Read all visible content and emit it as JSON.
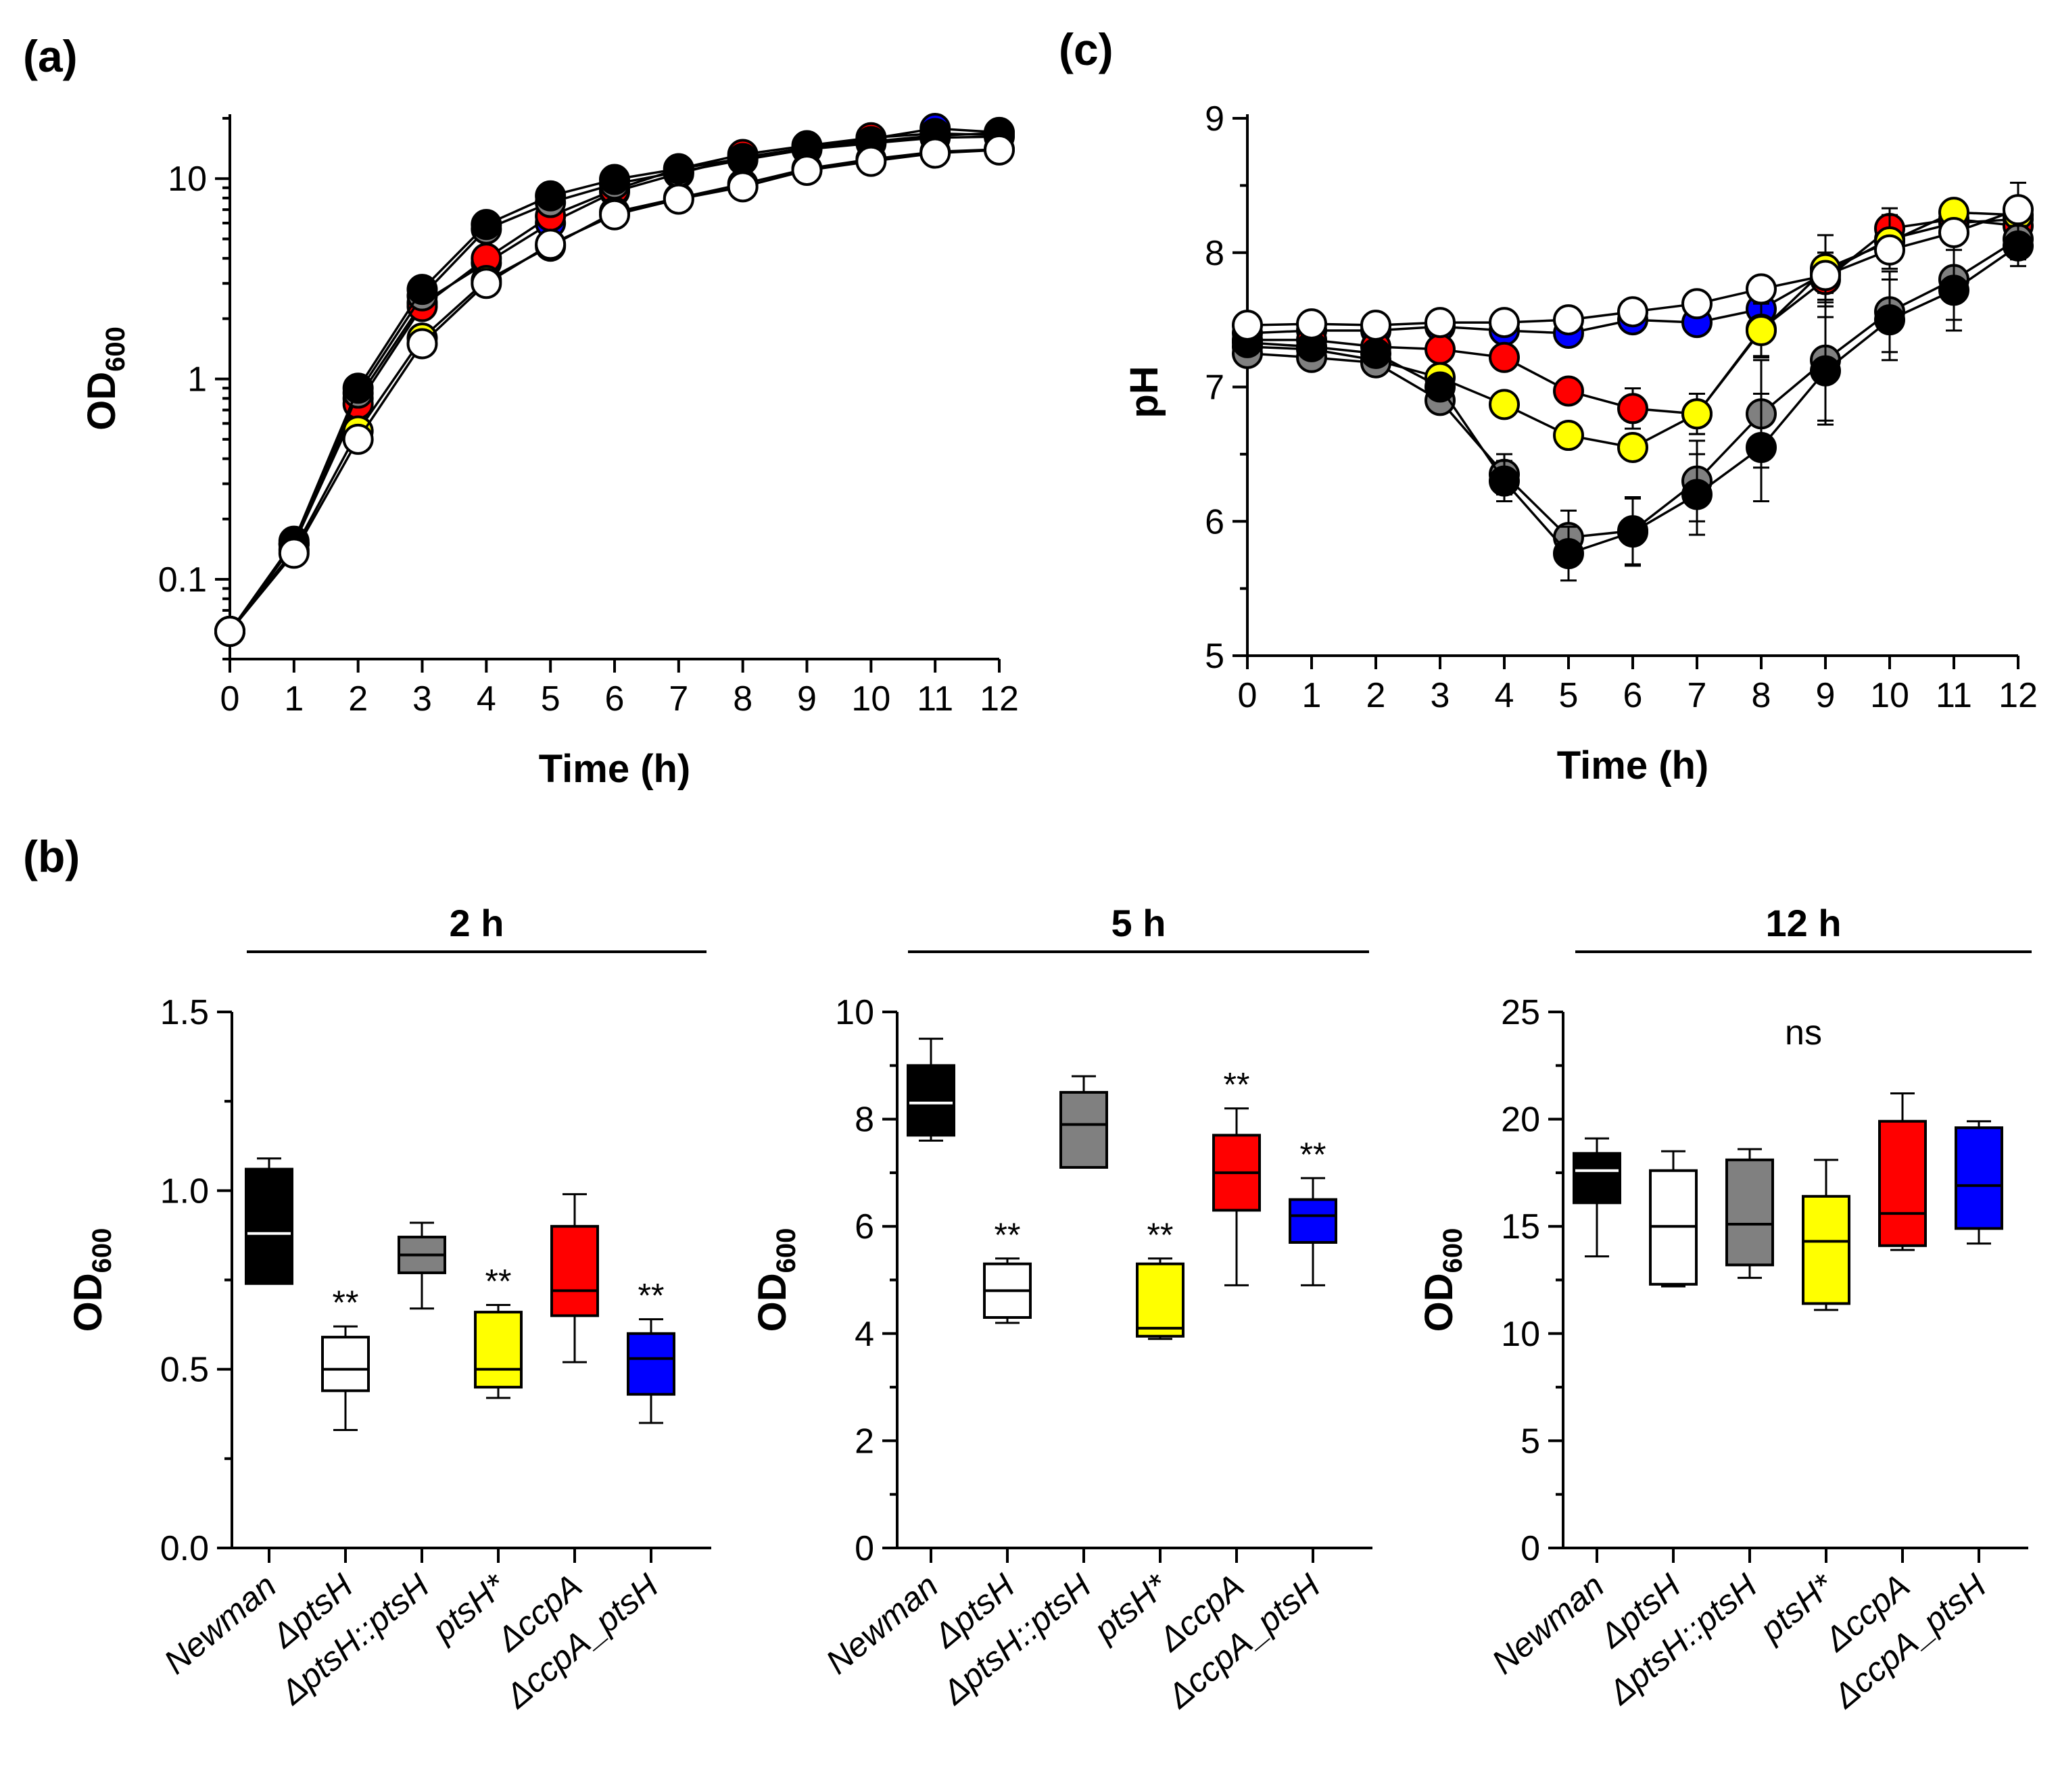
{
  "chart_data": [
    {
      "id": "a",
      "panel_label": "(a)",
      "type": "line",
      "yscale": "log",
      "xlabel": "Time (h)",
      "ylabel": "OD",
      "ylabel_sub": "600",
      "x": [
        0,
        1,
        2,
        3,
        4,
        5,
        6,
        7,
        8,
        9,
        10,
        11,
        12
      ],
      "xticks": [
        "0",
        "1",
        "2",
        "3",
        "4",
        "5",
        "6",
        "7",
        "8",
        "9",
        "10",
        "11",
        "12"
      ],
      "yticks": [
        {
          "v": 0.1,
          "label": "0.1"
        },
        {
          "v": 1,
          "label": "1"
        },
        {
          "v": 10,
          "label": "10"
        }
      ],
      "ylim": [
        0.04,
        20
      ],
      "series": [
        {
          "name": "ΔccpA_ptsH",
          "color": "#0000ff",
          "values": [
            0.055,
            0.15,
            0.8,
            2.4,
            3.8,
            6.0,
            8.6,
            10.6,
            12.8,
            14.2,
            15.8,
            17.8,
            17.0
          ],
          "err": [
            0.003,
            0.01,
            0.05,
            0.3,
            0.3,
            0.5,
            0.6,
            0.8,
            0.9,
            1.0,
            1.2,
            1.4,
            1.5
          ]
        },
        {
          "name": "ΔccpA",
          "color": "#ff0000",
          "values": [
            0.055,
            0.15,
            0.75,
            2.3,
            4.0,
            6.5,
            8.8,
            11.2,
            13.2,
            14.6,
            16.0,
            16.8,
            16.5
          ],
          "err": [
            0.003,
            0.01,
            0.05,
            0.3,
            0.3,
            0.5,
            0.6,
            0.8,
            0.9,
            1.0,
            1.2,
            1.4,
            1.5
          ]
        },
        {
          "name": "ptsH*",
          "color": "#ffff00",
          "values": [
            0.055,
            0.14,
            0.55,
            1.6,
            3.1,
            4.6,
            6.8,
            8.0,
            9.4,
            11.2,
            12.5,
            13.6,
            14.0
          ],
          "err": [
            0.003,
            0.01,
            0.05,
            0.2,
            0.3,
            0.4,
            0.5,
            0.6,
            0.8,
            1.0,
            1.2,
            1.3,
            1.5
          ]
        },
        {
          "name": "ΔptsH::ptsH",
          "color": "#808080",
          "values": [
            0.055,
            0.15,
            0.85,
            2.6,
            5.6,
            7.6,
            9.4,
            10.8,
            12.4,
            14.0,
            15.0,
            16.0,
            16.2
          ],
          "err": [
            0.003,
            0.01,
            0.05,
            0.3,
            0.4,
            0.5,
            0.6,
            0.8,
            0.9,
            1.0,
            1.2,
            1.4,
            1.5
          ]
        },
        {
          "name": "Newman",
          "color": "#000000",
          "values": [
            0.055,
            0.155,
            0.9,
            2.8,
            5.9,
            8.2,
            9.9,
            11.2,
            12.6,
            14.3,
            15.3,
            16.4,
            16.9
          ],
          "err": [
            0.003,
            0.01,
            0.05,
            0.3,
            0.4,
            0.5,
            0.6,
            0.8,
            0.9,
            1.0,
            1.2,
            1.4,
            1.5
          ]
        },
        {
          "name": "ΔptsH",
          "color": "#ffffff",
          "values": [
            0.055,
            0.135,
            0.5,
            1.5,
            3.0,
            4.7,
            6.6,
            7.9,
            9.1,
            11.0,
            12.2,
            13.4,
            13.9
          ],
          "err": [
            0.003,
            0.01,
            0.05,
            0.2,
            0.3,
            0.4,
            0.5,
            0.6,
            0.8,
            1.0,
            1.6,
            1.6,
            1.6
          ]
        }
      ]
    },
    {
      "id": "c",
      "panel_label": "(c)",
      "type": "line",
      "yscale": "linear",
      "xlabel": "Time (h)",
      "ylabel": "pH",
      "x": [
        0,
        1,
        2,
        3,
        4,
        5,
        6,
        7,
        8,
        9,
        10,
        11,
        12
      ],
      "xticks": [
        "0",
        "1",
        "2",
        "3",
        "4",
        "5",
        "6",
        "7",
        "8",
        "9",
        "10",
        "11",
        "12"
      ],
      "yticks": [
        {
          "v": 5,
          "label": "5"
        },
        {
          "v": 6,
          "label": "6"
        },
        {
          "v": 7,
          "label": "7"
        },
        {
          "v": 8,
          "label": "8"
        },
        {
          "v": 9,
          "label": "9"
        }
      ],
      "ylim": [
        5,
        9
      ],
      "series": [
        {
          "name": "ΔccpA_ptsH",
          "color": "#0000ff",
          "values": [
            7.4,
            7.42,
            7.42,
            7.45,
            7.42,
            7.4,
            7.5,
            7.48,
            7.58,
            7.85,
            8.1,
            8.22,
            8.25
          ],
          "err": [
            0.05,
            0.05,
            0.05,
            0.05,
            0.05,
            0.08,
            0.08,
            0.1,
            0.12,
            0.15,
            0.15,
            0.1,
            0.1
          ]
        },
        {
          "name": "ΔccpA",
          "color": "#ff0000",
          "values": [
            7.35,
            7.35,
            7.3,
            7.28,
            7.22,
            6.97,
            6.84,
            6.8,
            7.43,
            7.8,
            8.18,
            8.25,
            8.2
          ],
          "err": [
            0.05,
            0.05,
            0.05,
            0.08,
            0.1,
            0.1,
            0.15,
            0.15,
            0.2,
            0.2,
            0.15,
            0.1,
            0.1
          ]
        },
        {
          "name": "ptsH*",
          "color": "#ffff00",
          "values": [
            7.3,
            7.28,
            7.2,
            7.07,
            6.87,
            6.64,
            6.55,
            6.8,
            7.42,
            7.88,
            8.08,
            8.3,
            8.28
          ],
          "err": [
            0.05,
            0.05,
            0.05,
            0.08,
            0.1,
            0.1,
            0.1,
            0.15,
            0.2,
            0.25,
            0.2,
            0.1,
            0.1
          ]
        },
        {
          "name": "ΔptsH::ptsH",
          "color": "#808080",
          "values": [
            7.25,
            7.22,
            7.18,
            6.9,
            6.35,
            5.88,
            5.93,
            6.3,
            6.8,
            7.2,
            7.56,
            7.8,
            8.1
          ],
          "err": [
            0.05,
            0.05,
            0.1,
            0.1,
            0.15,
            0.2,
            0.25,
            0.3,
            0.4,
            0.45,
            0.3,
            0.3,
            0.15
          ]
        },
        {
          "name": "Newman",
          "color": "#000000",
          "values": [
            7.33,
            7.3,
            7.25,
            7.0,
            6.3,
            5.76,
            5.92,
            6.2,
            6.55,
            7.12,
            7.5,
            7.72,
            8.05
          ],
          "err": [
            0.05,
            0.05,
            0.1,
            0.1,
            0.15,
            0.2,
            0.25,
            0.3,
            0.4,
            0.4,
            0.3,
            0.3,
            0.15
          ]
        },
        {
          "name": "ΔptsH",
          "color": "#ffffff",
          "values": [
            7.46,
            7.47,
            7.46,
            7.48,
            7.48,
            7.5,
            7.56,
            7.62,
            7.73,
            7.83,
            8.02,
            8.15,
            8.32
          ],
          "err": [
            0.05,
            0.05,
            0.05,
            0.05,
            0.05,
            0.05,
            0.05,
            0.05,
            0.08,
            0.1,
            0.1,
            0.1,
            0.2
          ]
        }
      ]
    },
    {
      "id": "b-2h",
      "type": "box",
      "title": "2 h",
      "ylabel": "OD",
      "ylabel_sub": "600",
      "ylim": [
        0,
        1.5
      ],
      "yticks": [
        {
          "v": 0.0,
          "label": "0.0"
        },
        {
          "v": 0.5,
          "label": "0.5"
        },
        {
          "v": 1.0,
          "label": "1.0"
        },
        {
          "v": 1.5,
          "label": "1.5"
        }
      ],
      "categories": [
        "Newman",
        "ΔptsH",
        "ΔptsH::ptsH",
        "ptsH*",
        "ΔccpA",
        "ΔccpA_ptsH"
      ],
      "colors": [
        "#000000",
        "#ffffff",
        "#808080",
        "#ffff00",
        "#ff0000",
        "#0000ff"
      ],
      "median_colors": [
        "#ffffff",
        "#000000",
        "#000000",
        "#000000",
        "#000000",
        "#000000"
      ],
      "boxes": [
        {
          "min": 0.74,
          "q1": 0.74,
          "median": 0.88,
          "q3": 1.06,
          "max": 1.09
        },
        {
          "min": 0.33,
          "q1": 0.44,
          "median": 0.5,
          "q3": 0.59,
          "max": 0.62
        },
        {
          "min": 0.67,
          "q1": 0.77,
          "median": 0.82,
          "q3": 0.87,
          "max": 0.91
        },
        {
          "min": 0.42,
          "q1": 0.45,
          "median": 0.5,
          "q3": 0.66,
          "max": 0.68
        },
        {
          "min": 0.52,
          "q1": 0.65,
          "median": 0.72,
          "q3": 0.9,
          "max": 0.99
        },
        {
          "min": 0.35,
          "q1": 0.43,
          "median": 0.53,
          "q3": 0.6,
          "max": 0.64
        }
      ],
      "annotations": [
        "",
        "**",
        "",
        "**",
        "",
        "**"
      ]
    },
    {
      "id": "b-5h",
      "type": "box",
      "title": "5 h",
      "ylabel": "OD",
      "ylabel_sub": "600",
      "ylim": [
        0,
        10
      ],
      "yticks": [
        {
          "v": 0,
          "label": "0"
        },
        {
          "v": 2,
          "label": "2"
        },
        {
          "v": 4,
          "label": "4"
        },
        {
          "v": 6,
          "label": "6"
        },
        {
          "v": 8,
          "label": "8"
        },
        {
          "v": 10,
          "label": "10"
        }
      ],
      "categories": [
        "Newman",
        "ΔptsH",
        "ΔptsH::ptsH",
        "ptsH*",
        "ΔccpA",
        "ΔccpA_ptsH"
      ],
      "colors": [
        "#000000",
        "#ffffff",
        "#808080",
        "#ffff00",
        "#ff0000",
        "#0000ff"
      ],
      "median_colors": [
        "#ffffff",
        "#000000",
        "#000000",
        "#000000",
        "#000000",
        "#000000"
      ],
      "boxes": [
        {
          "min": 7.6,
          "q1": 7.7,
          "median": 8.3,
          "q3": 9.0,
          "max": 9.5
        },
        {
          "min": 4.2,
          "q1": 4.3,
          "median": 4.8,
          "q3": 5.3,
          "max": 5.4
        },
        {
          "min": 7.1,
          "q1": 7.1,
          "median": 7.9,
          "q3": 8.5,
          "max": 8.8
        },
        {
          "min": 3.9,
          "q1": 3.95,
          "median": 4.1,
          "q3": 5.3,
          "max": 5.4
        },
        {
          "min": 4.9,
          "q1": 6.3,
          "median": 7.0,
          "q3": 7.7,
          "max": 8.2
        },
        {
          "min": 4.9,
          "q1": 5.7,
          "median": 6.2,
          "q3": 6.5,
          "max": 6.9
        }
      ],
      "annotations": [
        "",
        "**",
        "",
        "**",
        "**",
        "**"
      ]
    },
    {
      "id": "b-12h",
      "type": "box",
      "title": "12 h",
      "subtitle": "ns",
      "ylabel": "OD",
      "ylabel_sub": "600",
      "ylim": [
        0,
        25
      ],
      "yticks": [
        {
          "v": 0,
          "label": "0"
        },
        {
          "v": 5,
          "label": "5"
        },
        {
          "v": 10,
          "label": "10"
        },
        {
          "v": 15,
          "label": "15"
        },
        {
          "v": 20,
          "label": "20"
        },
        {
          "v": 25,
          "label": "25"
        }
      ],
      "categories": [
        "Newman",
        "ΔptsH",
        "ΔptsH::ptsH",
        "ptsH*",
        "ΔccpA",
        "ΔccpA_ptsH"
      ],
      "colors": [
        "#000000",
        "#ffffff",
        "#808080",
        "#ffff00",
        "#ff0000",
        "#0000ff"
      ],
      "median_colors": [
        "#ffffff",
        "#000000",
        "#000000",
        "#000000",
        "#000000",
        "#000000"
      ],
      "boxes": [
        {
          "min": 13.6,
          "q1": 16.1,
          "median": 17.6,
          "q3": 18.4,
          "max": 19.1
        },
        {
          "min": 12.2,
          "q1": 12.3,
          "median": 15.0,
          "q3": 17.6,
          "max": 18.5
        },
        {
          "min": 12.6,
          "q1": 13.2,
          "median": 15.1,
          "q3": 18.1,
          "max": 18.6
        },
        {
          "min": 11.1,
          "q1": 11.4,
          "median": 14.3,
          "q3": 16.4,
          "max": 18.1
        },
        {
          "min": 13.9,
          "q1": 14.1,
          "median": 15.6,
          "q3": 19.9,
          "max": 21.2
        },
        {
          "min": 14.2,
          "q1": 14.9,
          "median": 16.9,
          "q3": 19.6,
          "max": 19.9
        }
      ],
      "annotations": [
        "",
        "",
        "",
        "",
        "",
        ""
      ]
    }
  ],
  "panel_b_label": "(b)"
}
